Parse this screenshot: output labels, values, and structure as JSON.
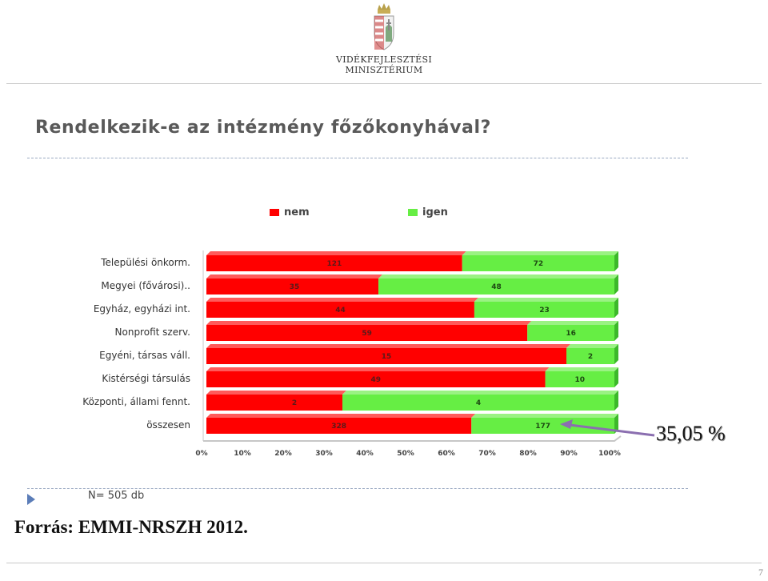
{
  "logo": {
    "line1": "VIDÉKFEJLESZTÉSI",
    "line2": "MINISZTÉRIUM"
  },
  "annotation": "35,05 %",
  "sample_size": "N= 505 db",
  "source": "Forrás: EMMI-NRSZH 2012.",
  "page_number": "7",
  "colors": {
    "nem": "#ff0000",
    "igen": "#66ee44"
  },
  "chart_data": {
    "type": "bar",
    "orientation": "horizontal",
    "stacked": "percent",
    "title": "Rendelkezik-e az intézmény főzőkonyhával?",
    "categories": [
      "Települési önkorm.",
      "Megyei (fővárosi)..",
      "Egyház, egyházi int.",
      "Nonprofit szerv.",
      "Egyéni, társas váll.",
      "Kistérségi társulás",
      "Központi, állami fennt.",
      "összesen"
    ],
    "series": [
      {
        "name": "nem",
        "values": [
          121,
          35,
          44,
          59,
          15,
          49,
          2,
          328
        ]
      },
      {
        "name": "igen",
        "values": [
          72,
          48,
          23,
          16,
          2,
          10,
          4,
          177
        ]
      }
    ],
    "x_ticks": [
      "0%",
      "10%",
      "20%",
      "30%",
      "40%",
      "50%",
      "60%",
      "70%",
      "80%",
      "90%",
      "100%"
    ],
    "xlim": [
      0,
      100
    ],
    "legend_position": "top"
  }
}
